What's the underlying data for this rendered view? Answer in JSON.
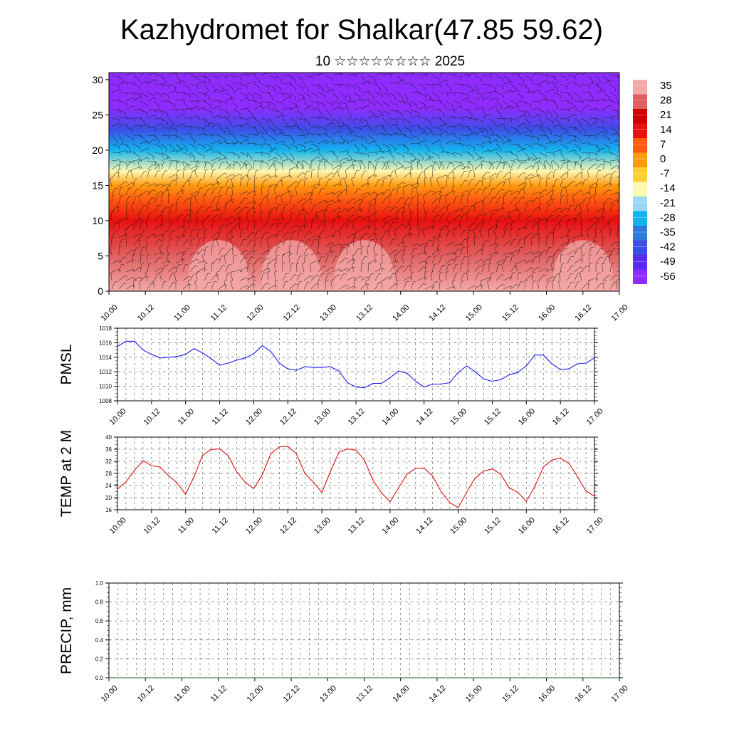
{
  "title": "Kazhydromet for Shalkar(47.85 59.62)",
  "subtitle": "10 ☆☆☆☆☆☆☆☆ 2025",
  "colors": {
    "pmsl_line": "#1a1aff",
    "temp_line": "#e01010",
    "precip_line": "#1b5e20",
    "colorbar": [
      "#8e2cff",
      "#5a2cf0",
      "#3d4ee6",
      "#2a7bd6",
      "#14b4ee",
      "#9ad9f5",
      "#fff8b0",
      "#ffd030",
      "#ff9a10",
      "#ff5a10",
      "#e81010",
      "#d00000",
      "#e06060",
      "#f4a8a8"
    ]
  },
  "chart_data": [
    {
      "type": "heatmap",
      "title": "",
      "xlabel": "",
      "ylabel": "",
      "x_ticks": [
        "10.00",
        "10.12",
        "11.00",
        "11.12",
        "12.00",
        "12.12",
        "13.00",
        "13.12",
        "14.00",
        "14.12",
        "15.00",
        "15.12",
        "16.00",
        "16.12",
        "17.00"
      ],
      "y_ticks": [
        0,
        5,
        10,
        15,
        20,
        25,
        30
      ],
      "ylim": [
        0,
        31
      ],
      "colorbar": {
        "labels": [
          "35",
          "28",
          "21",
          "14",
          "7",
          "0",
          "-7",
          "-14",
          "-21",
          "-28",
          "-35",
          "-42",
          "-49",
          "-56"
        ],
        "range": [
          -63,
          42
        ]
      },
      "overlay": "wind barbs",
      "temperature_profile": [
        {
          "height": 0,
          "value": 37
        },
        {
          "height": 5,
          "value": 30
        },
        {
          "height": 10,
          "value": 14
        },
        {
          "height": 13,
          "value": 5
        },
        {
          "height": 15,
          "value": -3
        },
        {
          "height": 17,
          "value": -12
        },
        {
          "height": 20,
          "value": -30
        },
        {
          "height": 23,
          "value": -48
        },
        {
          "height": 26,
          "value": -58
        },
        {
          "height": 31,
          "value": -60
        }
      ],
      "warm_spots": [
        {
          "time": 11.5,
          "height": 2,
          "value": 40
        },
        {
          "time": 12.5,
          "height": 2,
          "value": 40
        },
        {
          "time": 13.5,
          "height": 2,
          "value": 38
        },
        {
          "time": 16.5,
          "height": 2,
          "value": 36
        }
      ]
    },
    {
      "type": "line",
      "ylabel": "PMSL",
      "xlabel": "",
      "x_ticks": [
        "10.00",
        "10.12",
        "11.00",
        "11.12",
        "12.00",
        "12.12",
        "13.00",
        "13.12",
        "14.00",
        "14.12",
        "15.00",
        "15.12",
        "16.00",
        "16.12",
        "17.00"
      ],
      "y_ticks": [
        "1008",
        "1010",
        "1012",
        "1014",
        "1016",
        "1018"
      ],
      "ylim": [
        1008,
        1018
      ],
      "xlim": [
        10.0,
        17.0
      ],
      "grid": true,
      "series": [
        {
          "values": [
            [
              10.0,
              1015.5
            ],
            [
              10.125,
              1016.2
            ],
            [
              10.25,
              1016.2
            ],
            [
              10.375,
              1015.0
            ],
            [
              10.5,
              1014.4
            ],
            [
              10.625,
              1013.9
            ],
            [
              10.75,
              1014.0
            ],
            [
              10.875,
              1014.1
            ],
            [
              11.0,
              1014.4
            ],
            [
              11.125,
              1015.2
            ],
            [
              11.25,
              1014.6
            ],
            [
              11.375,
              1013.8
            ],
            [
              11.5,
              1012.9
            ],
            [
              11.625,
              1013.2
            ],
            [
              11.75,
              1013.6
            ],
            [
              11.875,
              1013.9
            ],
            [
              12.0,
              1014.5
            ],
            [
              12.125,
              1015.6
            ],
            [
              12.25,
              1014.8
            ],
            [
              12.375,
              1013.2
            ],
            [
              12.5,
              1012.4
            ],
            [
              12.625,
              1012.2
            ],
            [
              12.75,
              1012.7
            ],
            [
              12.875,
              1012.6
            ],
            [
              13.0,
              1012.6
            ],
            [
              13.125,
              1012.7
            ],
            [
              13.25,
              1012.1
            ],
            [
              13.375,
              1010.5
            ],
            [
              13.5,
              1009.9
            ],
            [
              13.625,
              1009.8
            ],
            [
              13.75,
              1010.4
            ],
            [
              13.875,
              1010.4
            ],
            [
              14.0,
              1011.2
            ],
            [
              14.125,
              1012.1
            ],
            [
              14.25,
              1011.8
            ],
            [
              14.375,
              1010.7
            ],
            [
              14.5,
              1009.9
            ],
            [
              14.625,
              1010.3
            ],
            [
              14.75,
              1010.3
            ],
            [
              14.875,
              1010.5
            ],
            [
              15.0,
              1011.9
            ],
            [
              15.125,
              1012.8
            ],
            [
              15.25,
              1012.0
            ],
            [
              15.375,
              1011.0
            ],
            [
              15.5,
              1010.7
            ],
            [
              15.625,
              1010.9
            ],
            [
              15.75,
              1011.6
            ],
            [
              15.875,
              1011.9
            ],
            [
              16.0,
              1012.8
            ],
            [
              16.125,
              1014.3
            ],
            [
              16.25,
              1014.3
            ],
            [
              16.375,
              1013.1
            ],
            [
              16.5,
              1012.3
            ],
            [
              16.625,
              1012.4
            ],
            [
              16.75,
              1013.1
            ],
            [
              16.875,
              1013.2
            ],
            [
              17.0,
              1013.9
            ]
          ]
        }
      ]
    },
    {
      "type": "line",
      "ylabel": "TEMP at 2 M",
      "xlabel": "",
      "x_ticks": [
        "10.00",
        "10.12",
        "11.00",
        "11.12",
        "12.00",
        "12.12",
        "13.00",
        "13.12",
        "14.00",
        "14.12",
        "15.00",
        "15.12",
        "16.00",
        "16.12",
        "17.00"
      ],
      "y_ticks": [
        "16",
        "20",
        "24",
        "28",
        "32",
        "36",
        "40"
      ],
      "ylim": [
        16,
        40
      ],
      "xlim": [
        10.0,
        17.0
      ],
      "grid": true,
      "series": [
        {
          "values": [
            [
              10.0,
              22.8
            ],
            [
              10.125,
              25.2
            ],
            [
              10.25,
              29.0
            ],
            [
              10.375,
              32.2
            ],
            [
              10.5,
              30.6
            ],
            [
              10.625,
              30.1
            ],
            [
              10.75,
              27.3
            ],
            [
              10.875,
              24.8
            ],
            [
              11.0,
              21.1
            ],
            [
              11.125,
              27.0
            ],
            [
              11.25,
              34.0
            ],
            [
              11.375,
              35.9
            ],
            [
              11.5,
              36.1
            ],
            [
              11.625,
              33.9
            ],
            [
              11.75,
              28.5
            ],
            [
              11.875,
              25.1
            ],
            [
              12.0,
              23.0
            ],
            [
              12.125,
              27.5
            ],
            [
              12.25,
              34.5
            ],
            [
              12.375,
              36.8
            ],
            [
              12.5,
              37.0
            ],
            [
              12.625,
              34.5
            ],
            [
              12.75,
              28.0
            ],
            [
              12.875,
              25.1
            ],
            [
              13.0,
              21.7
            ],
            [
              13.125,
              28.6
            ],
            [
              13.25,
              35.0
            ],
            [
              13.375,
              36.1
            ],
            [
              13.5,
              35.7
            ],
            [
              13.625,
              32.4
            ],
            [
              13.75,
              25.8
            ],
            [
              13.875,
              21.6
            ],
            [
              14.0,
              18.6
            ],
            [
              14.125,
              23.2
            ],
            [
              14.25,
              27.8
            ],
            [
              14.375,
              29.6
            ],
            [
              14.5,
              29.8
            ],
            [
              14.625,
              27.1
            ],
            [
              14.75,
              22.0
            ],
            [
              14.875,
              18.4
            ],
            [
              15.0,
              16.7
            ],
            [
              15.125,
              21.8
            ],
            [
              15.25,
              26.5
            ],
            [
              15.375,
              28.8
            ],
            [
              15.5,
              29.5
            ],
            [
              15.625,
              27.7
            ],
            [
              15.75,
              23.2
            ],
            [
              15.875,
              21.8
            ],
            [
              16.0,
              18.7
            ],
            [
              16.125,
              23.7
            ],
            [
              16.25,
              30.1
            ],
            [
              16.375,
              32.4
            ],
            [
              16.5,
              33.1
            ],
            [
              16.625,
              31.3
            ],
            [
              16.75,
              27.0
            ],
            [
              16.875,
              22.2
            ],
            [
              17.0,
              20.5
            ]
          ]
        }
      ]
    },
    {
      "type": "line",
      "ylabel": "PRECIP, mm",
      "xlabel": "",
      "x_ticks": [
        "10.00",
        "10.12",
        "11.00",
        "11.12",
        "12.00",
        "12.12",
        "13.00",
        "13.12",
        "14.00",
        "14.12",
        "15.00",
        "15.12",
        "16.00",
        "16.12",
        "17.00"
      ],
      "y_ticks": [
        "0.0",
        "0.2",
        "0.4",
        "0.6",
        "0.8",
        "1.0"
      ],
      "ylim": [
        0,
        1
      ],
      "xlim": [
        10.0,
        17.0
      ],
      "grid": true,
      "series": [
        {
          "values": [
            [
              10.0,
              0
            ],
            [
              17.0,
              0
            ]
          ]
        }
      ]
    }
  ]
}
